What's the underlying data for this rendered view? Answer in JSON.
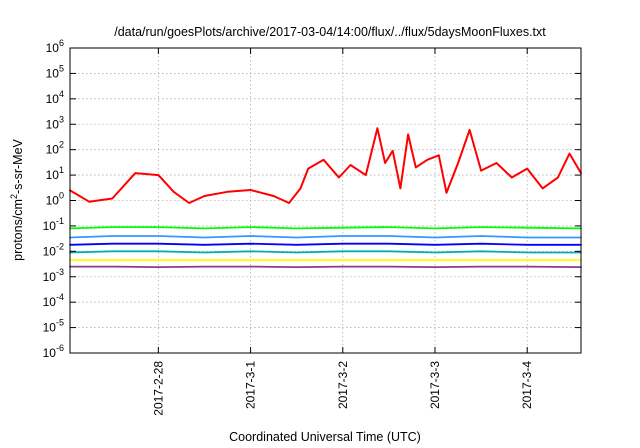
{
  "chart_data": {
    "type": "line",
    "title": "/data/run/goesPlots/archive/2017-03-04/14:00/flux/../flux/5daysMoonFluxes.txt",
    "xlabel": "Coordinated Universal Time (UTC)",
    "ylabel": {
      "pre": "protons/cm",
      "sup": "2",
      "post": "-s-sr-MeV"
    },
    "y_scale": "log",
    "ylim_exp": [
      -6,
      6
    ],
    "y_ticks": [
      {
        "exp": -6,
        "label": "10",
        "sup": "-6"
      },
      {
        "exp": -5,
        "label": "10",
        "sup": "-5"
      },
      {
        "exp": -4,
        "label": "10",
        "sup": "-4"
      },
      {
        "exp": -3,
        "label": "10",
        "sup": "-3"
      },
      {
        "exp": -2,
        "label": "10",
        "sup": "-2"
      },
      {
        "exp": -1,
        "label": "10",
        "sup": "-1"
      },
      {
        "exp": 0,
        "label": "10",
        "sup": "0"
      },
      {
        "exp": 1,
        "label": "10",
        "sup": "1"
      },
      {
        "exp": 2,
        "label": "10",
        "sup": "2"
      },
      {
        "exp": 3,
        "label": "10",
        "sup": "3"
      },
      {
        "exp": 4,
        "label": "10",
        "sup": "4"
      },
      {
        "exp": 5,
        "label": "10",
        "sup": "5"
      },
      {
        "exp": 6,
        "label": "10",
        "sup": "6"
      }
    ],
    "xlim": [
      "2017-02-27T01:00",
      "2017-03-04T14:00"
    ],
    "x_ticks": [
      {
        "date": "2017-02-28",
        "label": "2017-2-28"
      },
      {
        "date": "2017-03-01",
        "label": "2017-3-1"
      },
      {
        "date": "2017-03-02",
        "label": "2017-3-2"
      },
      {
        "date": "2017-03-03",
        "label": "2017-3-3"
      },
      {
        "date": "2017-03-04",
        "label": "2017-3-4"
      }
    ],
    "grid": true,
    "series": [
      {
        "color": "#ff0000",
        "x": [
          "2017-02-27T01:00",
          "2017-02-27T06:00",
          "2017-02-27T12:00",
          "2017-02-27T18:00",
          "2017-02-28T00:00",
          "2017-02-28T04:00",
          "2017-02-28T08:00",
          "2017-02-28T12:00",
          "2017-02-28T18:00",
          "2017-03-01T00:00",
          "2017-03-01T06:00",
          "2017-03-01T10:00",
          "2017-03-01T13:00",
          "2017-03-01T15:00",
          "2017-03-01T19:00",
          "2017-03-01T23:00",
          "2017-03-02T02:00",
          "2017-03-02T06:00",
          "2017-03-02T09:00",
          "2017-03-02T11:00",
          "2017-03-02T13:00",
          "2017-03-02T15:00",
          "2017-03-02T17:00",
          "2017-03-02T19:00",
          "2017-03-02T22:00",
          "2017-03-03T01:00",
          "2017-03-03T03:00",
          "2017-03-03T06:00",
          "2017-03-03T09:00",
          "2017-03-03T12:00",
          "2017-03-03T16:00",
          "2017-03-03T20:00",
          "2017-03-04T00:00",
          "2017-03-04T04:00",
          "2017-03-04T08:00",
          "2017-03-04T11:00",
          "2017-03-04T14:00"
        ],
        "values": [
          2.5,
          0.9,
          1.2,
          12,
          10,
          2.2,
          0.8,
          1.5,
          2.2,
          2.6,
          1.5,
          0.8,
          3.0,
          18,
          40,
          8,
          25,
          10,
          700,
          30,
          90,
          3,
          400,
          20,
          40,
          60,
          2,
          30,
          600,
          15,
          30,
          8,
          18,
          3,
          8,
          70,
          12
        ]
      },
      {
        "color": "#00ff00",
        "x": [
          "2017-02-27T01:00",
          "2017-02-27T12:00",
          "2017-02-28T00:00",
          "2017-02-28T12:00",
          "2017-03-01T00:00",
          "2017-03-01T12:00",
          "2017-03-02T00:00",
          "2017-03-02T12:00",
          "2017-03-03T00:00",
          "2017-03-03T12:00",
          "2017-03-04T00:00",
          "2017-03-04T14:00"
        ],
        "values": [
          0.08,
          0.09,
          0.09,
          0.08,
          0.09,
          0.08,
          0.085,
          0.09,
          0.08,
          0.09,
          0.085,
          0.08
        ]
      },
      {
        "color": "#3399ff",
        "x": [
          "2017-02-27T01:00",
          "2017-02-27T12:00",
          "2017-02-28T00:00",
          "2017-02-28T12:00",
          "2017-03-01T00:00",
          "2017-03-01T12:00",
          "2017-03-02T00:00",
          "2017-03-02T12:00",
          "2017-03-03T00:00",
          "2017-03-03T12:00",
          "2017-03-04T00:00",
          "2017-03-04T14:00"
        ],
        "values": [
          0.035,
          0.04,
          0.04,
          0.035,
          0.04,
          0.035,
          0.04,
          0.04,
          0.035,
          0.04,
          0.035,
          0.035
        ]
      },
      {
        "color": "#0000ff",
        "x": [
          "2017-02-27T01:00",
          "2017-02-27T12:00",
          "2017-02-28T00:00",
          "2017-02-28T12:00",
          "2017-03-01T00:00",
          "2017-03-01T12:00",
          "2017-03-02T00:00",
          "2017-03-02T12:00",
          "2017-03-03T00:00",
          "2017-03-03T12:00",
          "2017-03-04T00:00",
          "2017-03-04T14:00"
        ],
        "values": [
          0.018,
          0.02,
          0.02,
          0.018,
          0.02,
          0.018,
          0.02,
          0.02,
          0.018,
          0.02,
          0.018,
          0.018
        ]
      },
      {
        "color": "#00b0b0",
        "x": [
          "2017-02-27T01:00",
          "2017-02-27T12:00",
          "2017-02-28T00:00",
          "2017-02-28T12:00",
          "2017-03-01T00:00",
          "2017-03-01T12:00",
          "2017-03-02T00:00",
          "2017-03-02T12:00",
          "2017-03-03T00:00",
          "2017-03-03T12:00",
          "2017-03-04T00:00",
          "2017-03-04T14:00"
        ],
        "values": [
          0.009,
          0.01,
          0.01,
          0.009,
          0.01,
          0.009,
          0.01,
          0.01,
          0.009,
          0.01,
          0.009,
          0.009
        ]
      },
      {
        "color": "#ffff00",
        "x": [
          "2017-02-27T01:00",
          "2017-02-27T12:00",
          "2017-02-28T00:00",
          "2017-02-28T12:00",
          "2017-03-01T00:00",
          "2017-03-01T12:00",
          "2017-03-02T00:00",
          "2017-03-02T12:00",
          "2017-03-03T00:00",
          "2017-03-03T12:00",
          "2017-03-04T00:00",
          "2017-03-04T14:00"
        ],
        "values": [
          0.0045,
          0.0045,
          0.0045,
          0.0045,
          0.0045,
          0.0045,
          0.0045,
          0.0045,
          0.0045,
          0.0045,
          0.0045,
          0.0045
        ]
      },
      {
        "color": "#8b3a8b",
        "x": [
          "2017-02-27T01:00",
          "2017-02-27T12:00",
          "2017-02-28T00:00",
          "2017-02-28T12:00",
          "2017-03-01T00:00",
          "2017-03-01T12:00",
          "2017-03-02T00:00",
          "2017-03-02T12:00",
          "2017-03-03T00:00",
          "2017-03-03T12:00",
          "2017-03-04T00:00",
          "2017-03-04T14:00"
        ],
        "values": [
          0.0025,
          0.0025,
          0.0024,
          0.0025,
          0.0025,
          0.0024,
          0.0025,
          0.0025,
          0.0024,
          0.0025,
          0.0025,
          0.0024
        ]
      }
    ]
  }
}
